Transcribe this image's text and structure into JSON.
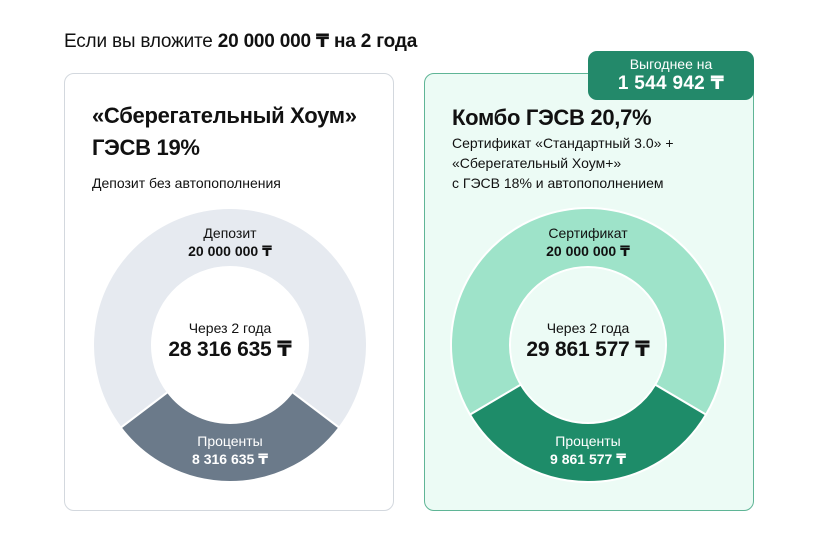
{
  "headline": {
    "prefix": "Если вы вложите ",
    "amount": "20 000 000 ₸",
    "middle": " на ",
    "term": "2 года"
  },
  "left_card": {
    "title_line1": "«Сберегательный Хоум»",
    "title_line2": "ГЭСВ 19%",
    "subtitle": "Депозит без автопополнения",
    "donut": {
      "principal_label": "Депозит",
      "principal_value": "20 000 000 ₸",
      "center_label": "Через 2 года",
      "center_value": "28 316 635 ₸",
      "interest_label": "Проценты",
      "interest_value": "8 316 635 ₸"
    },
    "colors": {
      "principal": "#e6eaf0",
      "interest": "#6b7a8a",
      "hole": "#ffffff"
    }
  },
  "right_card": {
    "title": "Комбо ГЭСВ 20,7%",
    "subtitle_lines": [
      "Сертификат «Стандартный 3.0» +",
      "«Сберегательный Хоум+»",
      "с ГЭСВ 18% и автопополнением"
    ],
    "badge": {
      "label": "Выгоднее на",
      "value": "1 544 942 ₸"
    },
    "donut": {
      "principal_label": "Сертификат",
      "principal_value": "20 000 000 ₸",
      "center_label": "Через 2 года",
      "center_value": "29 861 577 ₸",
      "interest_label": "Проценты",
      "interest_value": "9 861 577 ₸"
    },
    "colors": {
      "principal": "#9ee3c9",
      "interest": "#1e8c69",
      "hole": "#ecfbf5",
      "badge": "#23896a"
    }
  },
  "chart_data": [
    {
      "type": "pie",
      "title": "«Сберегательный Хоум» ГЭСВ 19%",
      "subtitle": "Депозит без автопополнения",
      "categories": [
        "Депозит",
        "Проценты"
      ],
      "values": [
        20000000,
        8316635
      ],
      "total_label": "Через 2 года",
      "total": 28316635,
      "currency": "₸",
      "donut": true
    },
    {
      "type": "pie",
      "title": "Комбо ГЭСВ 20,7%",
      "subtitle": "Сертификат «Стандартный 3.0» + «Сберегательный Хоум+» с ГЭСВ 18% и автопополнением",
      "categories": [
        "Сертификат",
        "Проценты"
      ],
      "values": [
        20000000,
        9861577
      ],
      "total_label": "Через 2 года",
      "total": 29861577,
      "currency": "₸",
      "donut": true,
      "annotation": "Выгоднее на 1 544 942 ₸"
    }
  ]
}
